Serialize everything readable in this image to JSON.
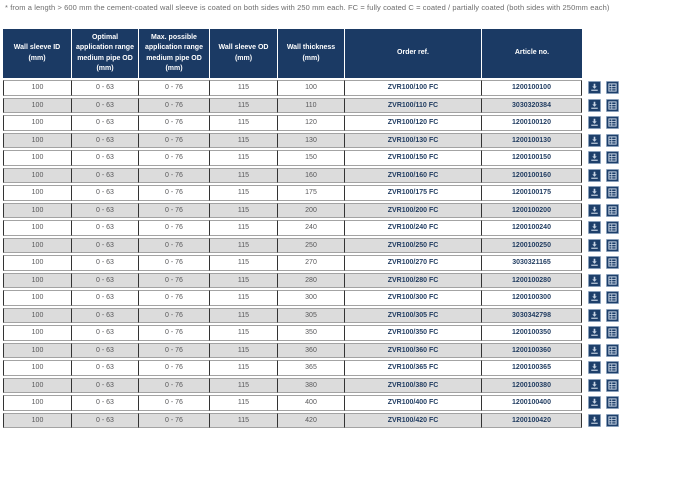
{
  "note": "* from a length > 600 mm the cement-coated wall sleeve is coated on both sides with 250 mm each. FC = fully coated C = coated / partially coated (both sides with 250mm each)",
  "colors": {
    "header_bg": "#1b3a64",
    "alt_row_bg": "#dcdcdc",
    "accent_text": "#1e3a5f",
    "cell_text": "#58585a",
    "button_bg": "#1d3f6a",
    "icon_color": "#c7d3e2"
  },
  "table": {
    "headers": [
      "Wall sleeve ID (mm)",
      "Optimal application range medium pipe OD (mm)",
      "Max. possible application range medium pipe OD (mm)",
      "Wall sleeve OD (mm)",
      "Wall thickness (mm)",
      "Order ref.",
      "Article no."
    ],
    "row_actions": [
      "download-icon",
      "datasheet-icon"
    ],
    "rows": [
      [
        "100",
        "0 - 63",
        "0 - 76",
        "115",
        "100",
        "ZVR100/100 FC",
        "1200100100"
      ],
      [
        "100",
        "0 - 63",
        "0 - 76",
        "115",
        "110",
        "ZVR100/110 FC",
        "3030320384"
      ],
      [
        "100",
        "0 - 63",
        "0 - 76",
        "115",
        "120",
        "ZVR100/120 FC",
        "1200100120"
      ],
      [
        "100",
        "0 - 63",
        "0 - 76",
        "115",
        "130",
        "ZVR100/130 FC",
        "1200100130"
      ],
      [
        "100",
        "0 - 63",
        "0 - 76",
        "115",
        "150",
        "ZVR100/150 FC",
        "1200100150"
      ],
      [
        "100",
        "0 - 63",
        "0 - 76",
        "115",
        "160",
        "ZVR100/160 FC",
        "1200100160"
      ],
      [
        "100",
        "0 - 63",
        "0 - 76",
        "115",
        "175",
        "ZVR100/175 FC",
        "1200100175"
      ],
      [
        "100",
        "0 - 63",
        "0 - 76",
        "115",
        "200",
        "ZVR100/200 FC",
        "1200100200"
      ],
      [
        "100",
        "0 - 63",
        "0 - 76",
        "115",
        "240",
        "ZVR100/240 FC",
        "1200100240"
      ],
      [
        "100",
        "0 - 63",
        "0 - 76",
        "115",
        "250",
        "ZVR100/250 FC",
        "1200100250"
      ],
      [
        "100",
        "0 - 63",
        "0 - 76",
        "115",
        "270",
        "ZVR100/270 FC",
        "3030321165"
      ],
      [
        "100",
        "0 - 63",
        "0 - 76",
        "115",
        "280",
        "ZVR100/280 FC",
        "1200100280"
      ],
      [
        "100",
        "0 - 63",
        "0 - 76",
        "115",
        "300",
        "ZVR100/300 FC",
        "1200100300"
      ],
      [
        "100",
        "0 - 63",
        "0 - 76",
        "115",
        "305",
        "ZVR100/305 FC",
        "3030342798"
      ],
      [
        "100",
        "0 - 63",
        "0 - 76",
        "115",
        "350",
        "ZVR100/350 FC",
        "1200100350"
      ],
      [
        "100",
        "0 - 63",
        "0 - 76",
        "115",
        "360",
        "ZVR100/360 FC",
        "1200100360"
      ],
      [
        "100",
        "0 - 63",
        "0 - 76",
        "115",
        "365",
        "ZVR100/365 FC",
        "1200100365"
      ],
      [
        "100",
        "0 - 63",
        "0 - 76",
        "115",
        "380",
        "ZVR100/380 FC",
        "1200100380"
      ],
      [
        "100",
        "0 - 63",
        "0 - 76",
        "115",
        "400",
        "ZVR100/400 FC",
        "1200100400"
      ],
      [
        "100",
        "0 - 63",
        "0 - 76",
        "115",
        "420",
        "ZVR100/420 FC",
        "1200100420"
      ]
    ]
  }
}
